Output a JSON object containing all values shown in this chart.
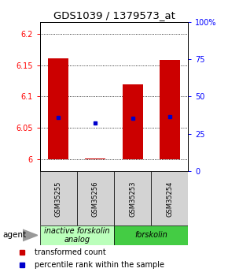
{
  "title": "GDS1039 / 1379573_at",
  "samples": [
    "GSM35255",
    "GSM35256",
    "GSM35253",
    "GSM35254"
  ],
  "bar_values": [
    6.161,
    6.001,
    6.119,
    6.159
  ],
  "bar_bottom": 6.0,
  "blue_values": [
    6.067,
    6.058,
    6.065,
    6.068
  ],
  "ylim_left": [
    5.98,
    6.22
  ],
  "yticks_left": [
    6.0,
    6.05,
    6.1,
    6.15,
    6.2
  ],
  "ytick_labels_left": [
    "6",
    "6.05",
    "6.1",
    "6.15",
    "6.2"
  ],
  "ylim_right": [
    0,
    100
  ],
  "yticks_right": [
    0,
    25,
    50,
    75,
    100
  ],
  "ytick_labels_right": [
    "0",
    "25",
    "50",
    "75",
    "100%"
  ],
  "bar_color": "#cc0000",
  "blue_color": "#0000cc",
  "bar_width": 0.55,
  "groups": [
    {
      "label": "inactive forskolin\nanalog",
      "start": 0,
      "end": 2,
      "color": "#bbffbb"
    },
    {
      "label": "forskolin",
      "start": 2,
      "end": 4,
      "color": "#44cc44"
    }
  ],
  "agent_label": "agent",
  "legend_red": "transformed count",
  "legend_blue": "percentile rank within the sample",
  "background_color": "#ffffff",
  "title_fontsize": 9.5,
  "tick_fontsize": 7,
  "sample_fontsize": 6,
  "group_fontsize": 7,
  "legend_fontsize": 7
}
